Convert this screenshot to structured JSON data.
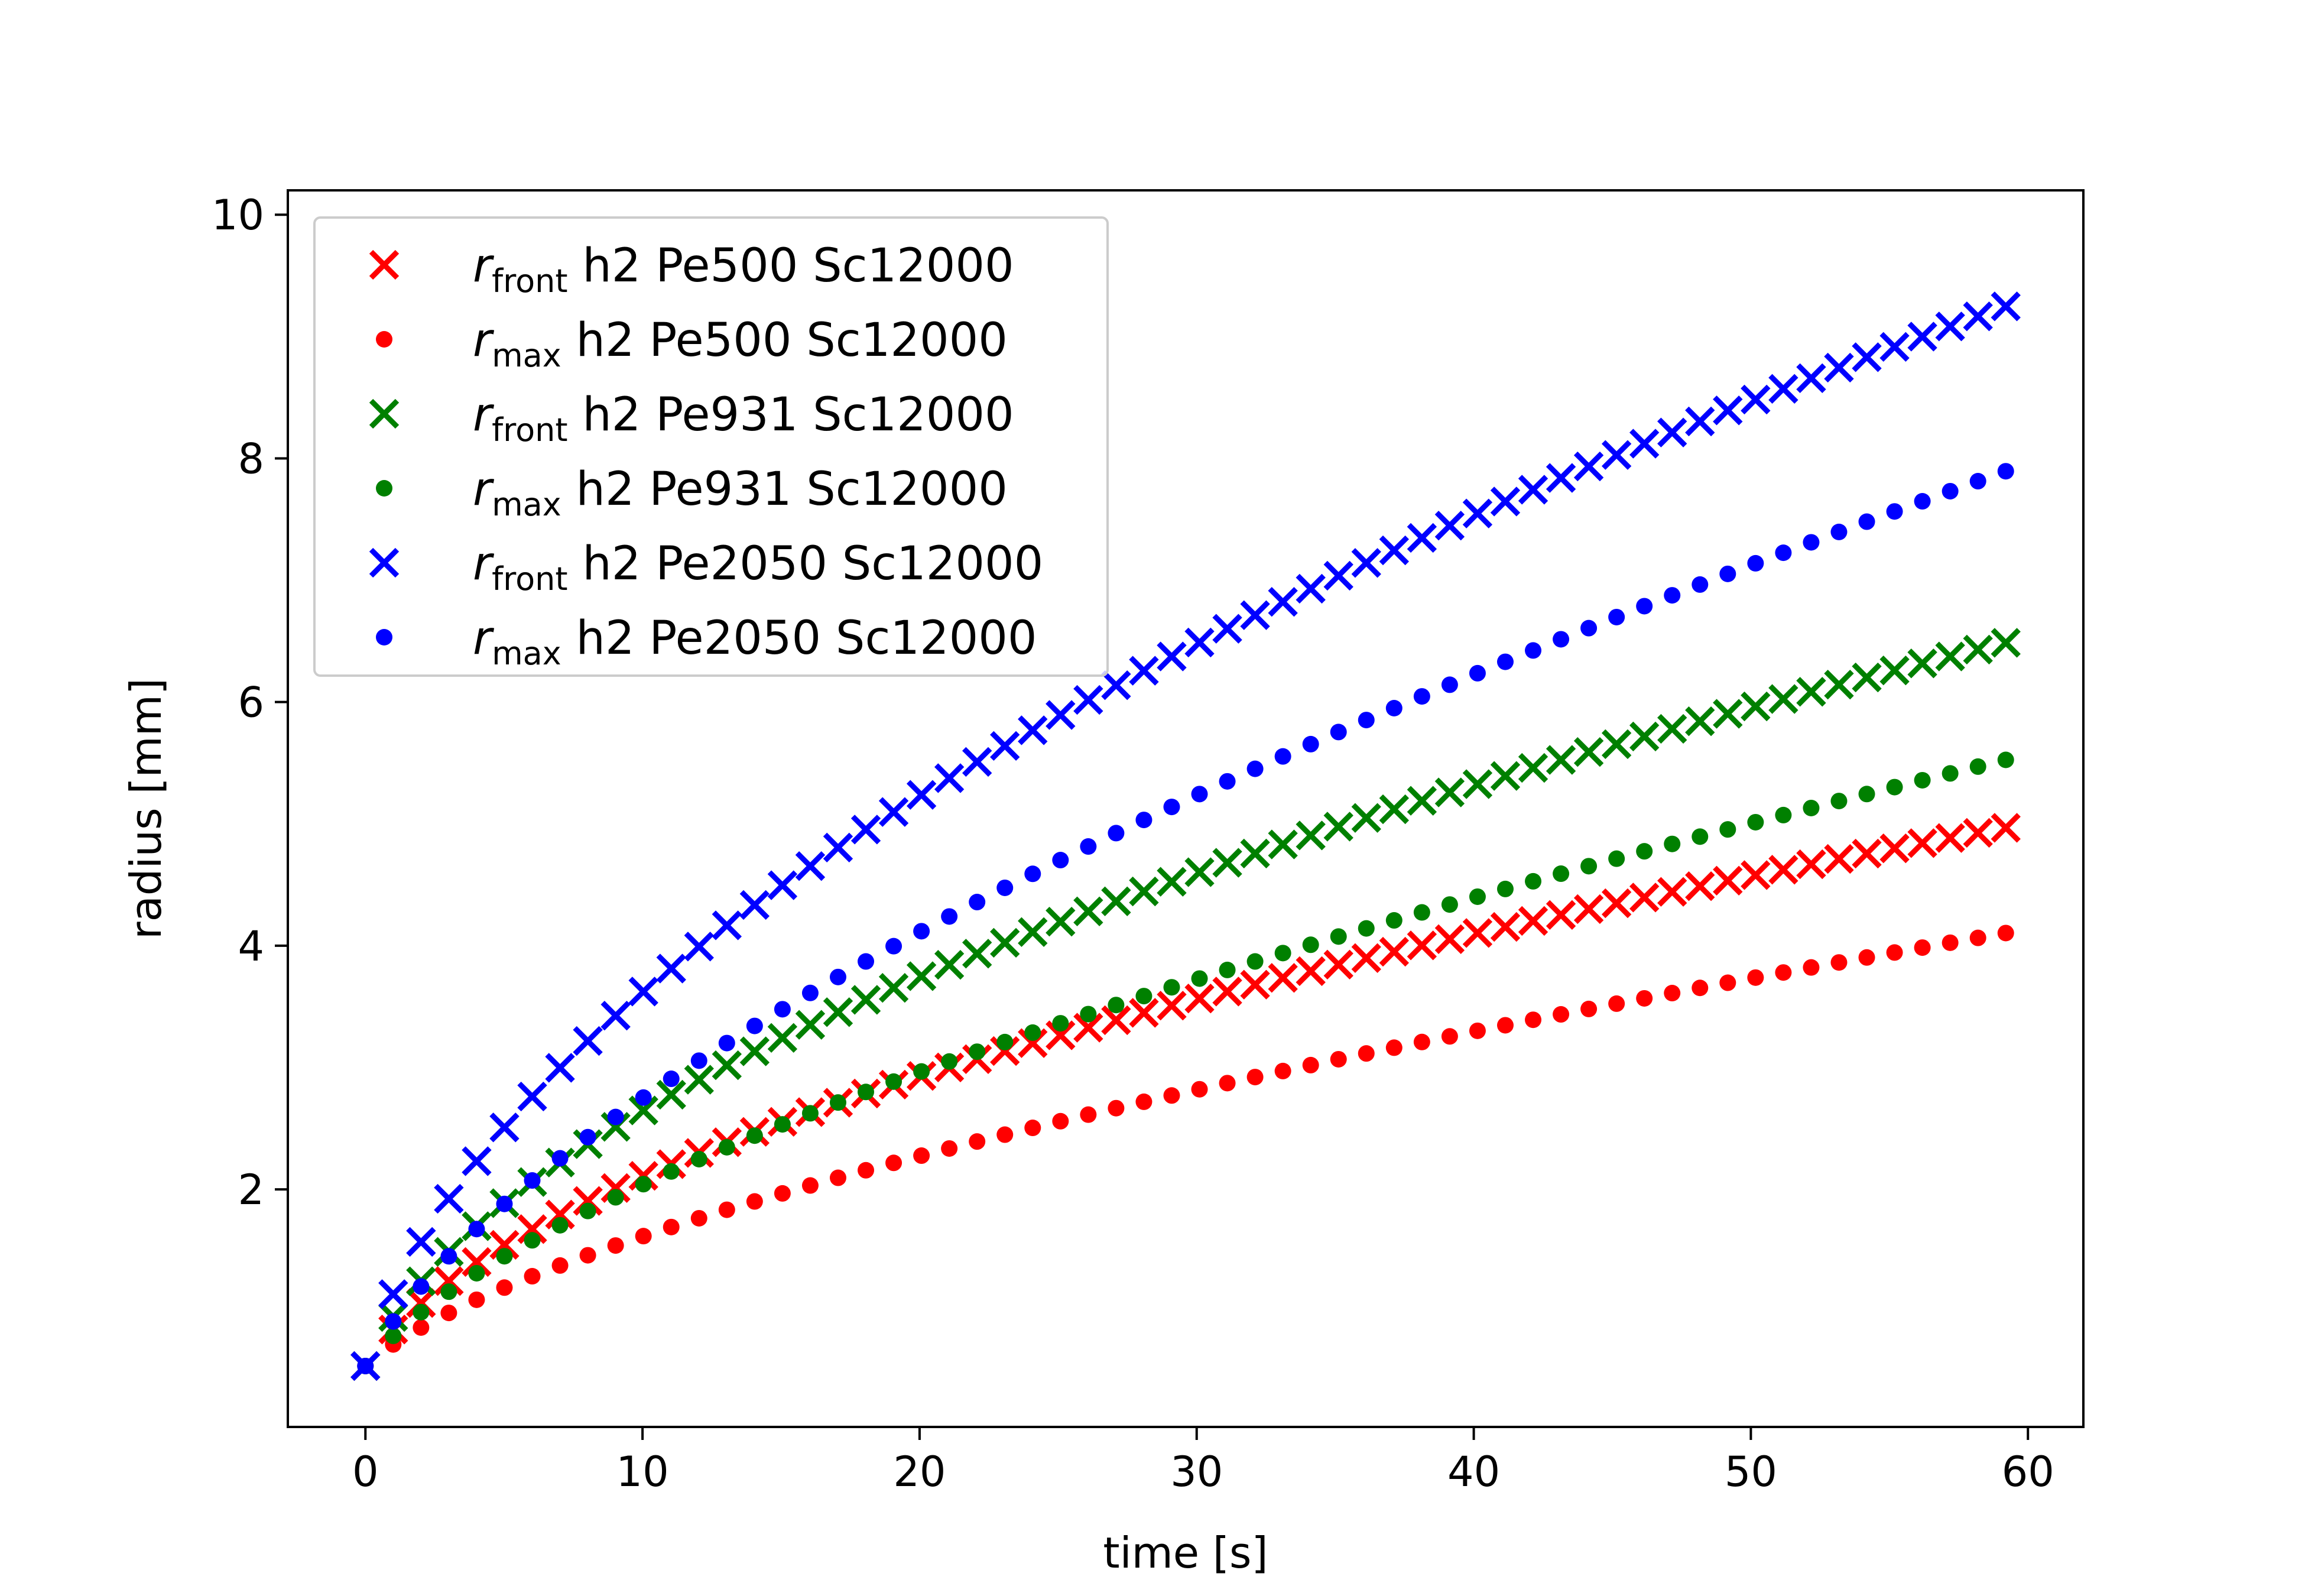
{
  "chart_data": {
    "type": "scatter",
    "title": "",
    "xlabel": "time [s]",
    "ylabel": "radius [mm]",
    "xlim": [
      -2.8,
      62
    ],
    "ylim": [
      0.05,
      10.2
    ],
    "xticks": [
      0,
      10,
      20,
      30,
      40,
      50,
      60
    ],
    "yticks": [
      2,
      4,
      6,
      8,
      10
    ],
    "grid": false,
    "legend_position": "upper-left",
    "series": [
      {
        "name_symbol": "r",
        "name_sub": "front",
        "name_rest": " h2 Pe500 Sc12000",
        "color": "#ff0000",
        "marker": "x",
        "coef": 0.64,
        "exp": 0.5,
        "t0": 0.7,
        "x_start": 0,
        "x_end": 59.2,
        "n": 60
      },
      {
        "name_symbol": "r",
        "name_sub": "max",
        "name_rest": " h2 Pe500 Sc12000",
        "color": "#ff0000",
        "marker": "dot",
        "coef": 0.3,
        "exp": 0.62,
        "t0": 0.7,
        "x_start": 0,
        "x_end": 59.2,
        "n": 60
      },
      {
        "name_symbol": "r",
        "name_sub": "front",
        "name_rest": " h2 Pe931 Sc12000",
        "color": "#008000",
        "marker": "x",
        "coef": 0.86,
        "exp": 0.5,
        "t0": 0.7,
        "x_start": 0,
        "x_end": 59.2,
        "n": 60
      },
      {
        "name_symbol": "r",
        "name_sub": "max",
        "name_rest": " h2 Pe931 Sc12000",
        "color": "#008000",
        "marker": "dot",
        "coef": 0.42,
        "exp": 0.62,
        "t0": 0.7,
        "x_start": 0,
        "x_end": 59.2,
        "n": 60
      },
      {
        "name_symbol": "r",
        "name_sub": "front",
        "name_rest": " h2 Pe2050 Sc12000",
        "color": "#0000ff",
        "marker": "x",
        "coef": 1.26,
        "exp": 0.5,
        "t0": 0.7,
        "x_start": 0,
        "x_end": 59.2,
        "n": 60
      },
      {
        "name_symbol": "r",
        "name_sub": "max",
        "name_rest": " h2 Pe2050 Sc12000",
        "color": "#0000ff",
        "marker": "dot",
        "coef": 0.62,
        "exp": 0.62,
        "t0": 0.7,
        "x_start": 0,
        "x_end": 59.2,
        "n": 60
      }
    ]
  }
}
